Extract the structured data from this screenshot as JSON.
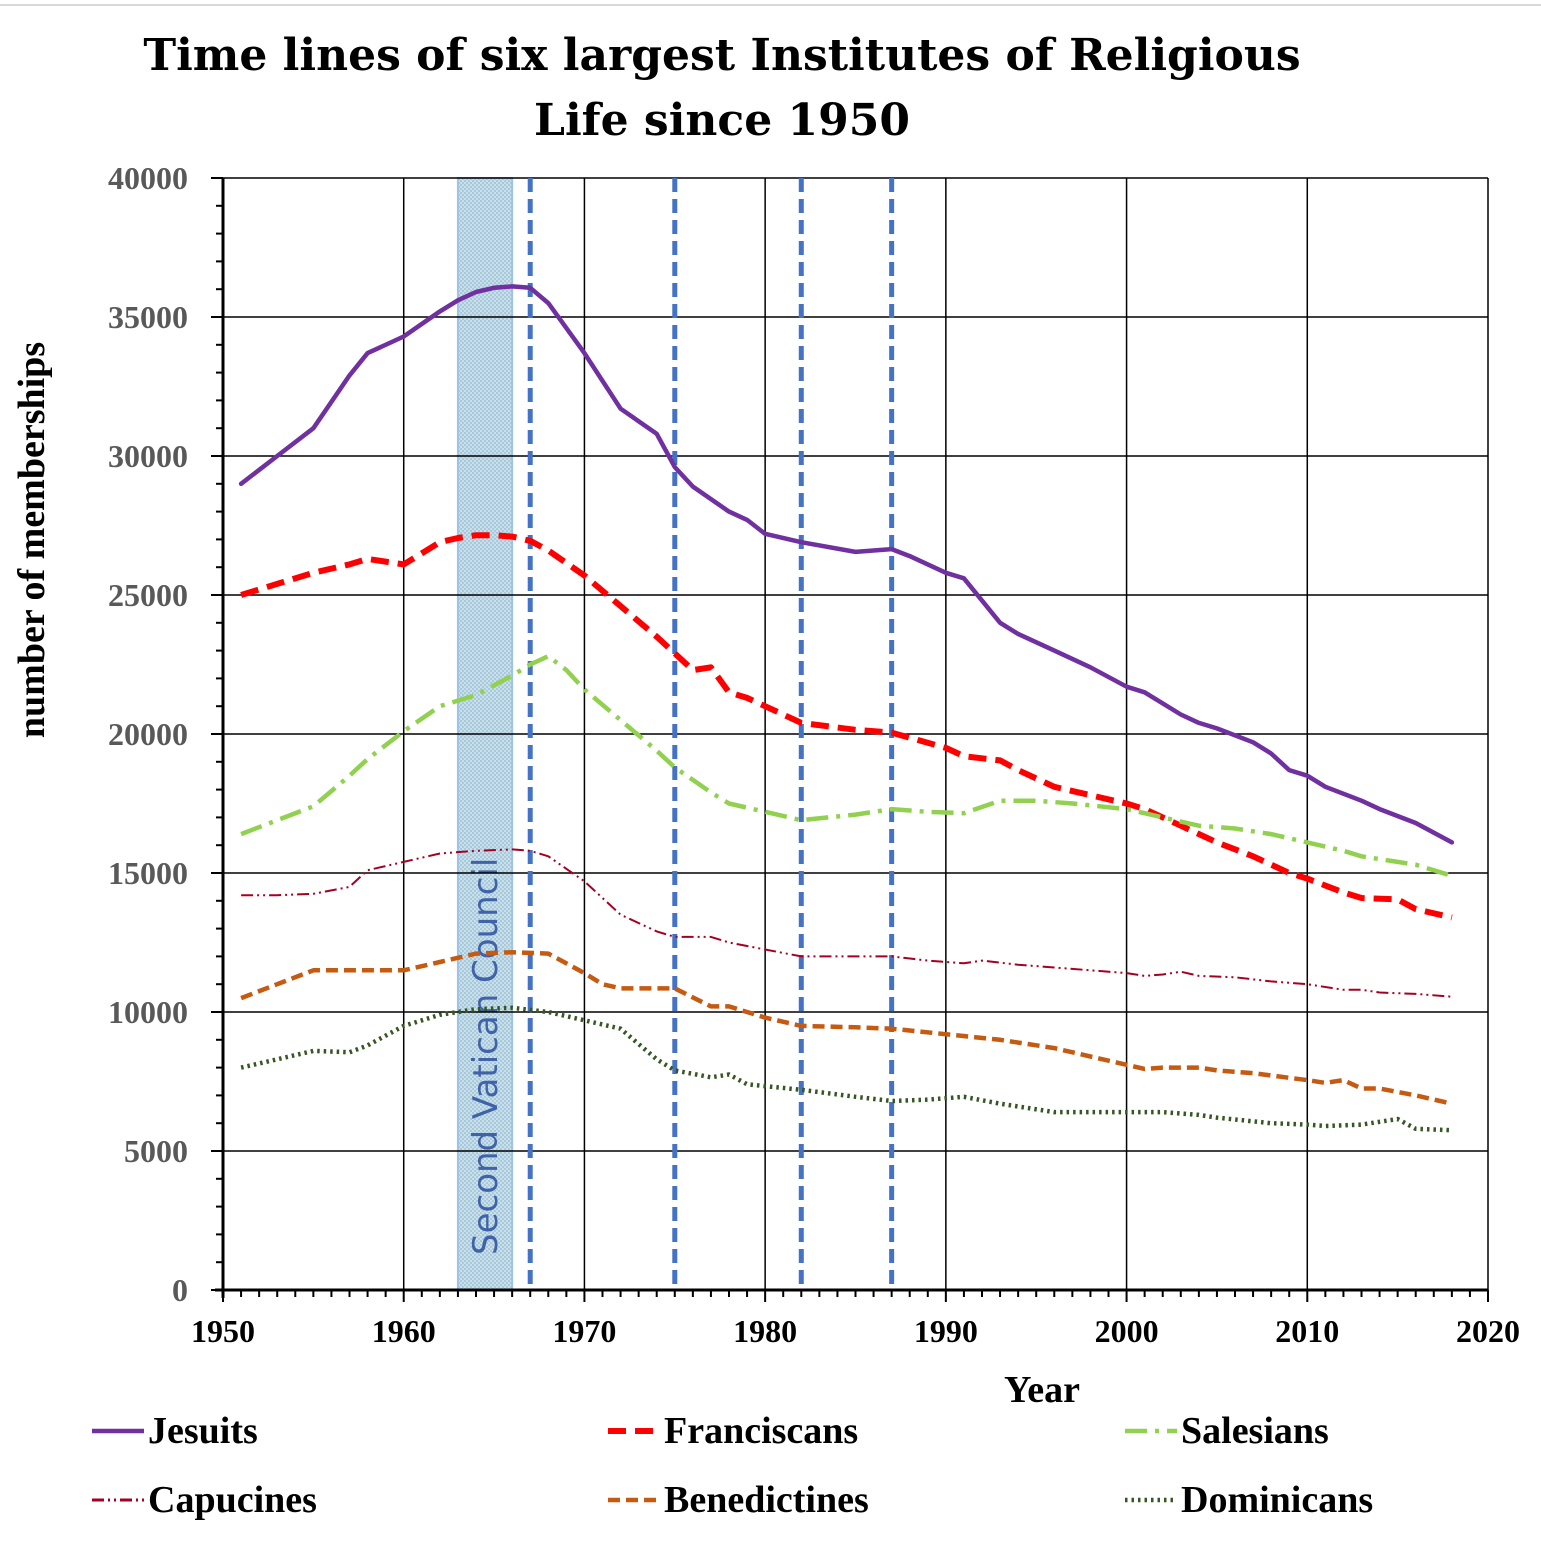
{
  "chart_data": {
    "type": "line",
    "title_lines": [
      "Time lines of  six largest Institutes of  Religious",
      "Life since 1950"
    ],
    "xlabel": "Year",
    "ylabel": "number of  memberships",
    "xlim": [
      1950,
      2020
    ],
    "ylim": [
      0,
      40000
    ],
    "x_ticks": [
      1950,
      1960,
      1970,
      1980,
      1990,
      2000,
      2010,
      2020
    ],
    "y_ticks": [
      0,
      5000,
      10000,
      15000,
      20000,
      25000,
      30000,
      35000,
      40000
    ],
    "grid": true,
    "legend_position": "bottom",
    "band": {
      "x_start": 1963,
      "x_end": 1966,
      "label": "Second Vatican Council",
      "fill": "#b9d7e6",
      "text_color": "#4062a8"
    },
    "markers": {
      "x_values": [
        1967,
        1975,
        1982,
        1987
      ],
      "color": "#4472c4"
    },
    "colors": {
      "axis": "#000000",
      "grid": "#000000",
      "tick_label": "#595959"
    },
    "series": [
      {
        "name": "Jesuits",
        "color": "#7030a0",
        "style": "solid",
        "points": [
          [
            1951,
            29000
          ],
          [
            1953,
            30000
          ],
          [
            1955,
            31000
          ],
          [
            1957,
            32900
          ],
          [
            1958,
            33700
          ],
          [
            1960,
            34300
          ],
          [
            1962,
            35200
          ],
          [
            1963,
            35600
          ],
          [
            1964,
            35900
          ],
          [
            1965,
            36050
          ],
          [
            1966,
            36100
          ],
          [
            1967,
            36050
          ],
          [
            1968,
            35500
          ],
          [
            1970,
            33700
          ],
          [
            1972,
            31700
          ],
          [
            1974,
            30800
          ],
          [
            1975,
            29600
          ],
          [
            1976,
            28900
          ],
          [
            1978,
            28000
          ],
          [
            1979,
            27700
          ],
          [
            1980,
            27200
          ],
          [
            1982,
            26900
          ],
          [
            1985,
            26550
          ],
          [
            1987,
            26650
          ],
          [
            1988,
            26400
          ],
          [
            1990,
            25800
          ],
          [
            1991,
            25600
          ],
          [
            1993,
            24000
          ],
          [
            1994,
            23600
          ],
          [
            1996,
            23000
          ],
          [
            1998,
            22400
          ],
          [
            2000,
            21700
          ],
          [
            2001,
            21500
          ],
          [
            2003,
            20700
          ],
          [
            2004,
            20400
          ],
          [
            2005,
            20200
          ],
          [
            2007,
            19700
          ],
          [
            2008,
            19300
          ],
          [
            2009,
            18700
          ],
          [
            2010,
            18500
          ],
          [
            2011,
            18100
          ],
          [
            2013,
            17600
          ],
          [
            2014,
            17300
          ],
          [
            2016,
            16800
          ],
          [
            2018,
            16100
          ]
        ]
      },
      {
        "name": "Franciscans",
        "color": "#ff0000",
        "style": "dash",
        "points": [
          [
            1951,
            25000
          ],
          [
            1953,
            25400
          ],
          [
            1955,
            25800
          ],
          [
            1957,
            26100
          ],
          [
            1958,
            26300
          ],
          [
            1960,
            26100
          ],
          [
            1961,
            26500
          ],
          [
            1962,
            26900
          ],
          [
            1963,
            27050
          ],
          [
            1964,
            27150
          ],
          [
            1965,
            27150
          ],
          [
            1966,
            27100
          ],
          [
            1967,
            26950
          ],
          [
            1968,
            26600
          ],
          [
            1970,
            25700
          ],
          [
            1972,
            24600
          ],
          [
            1974,
            23500
          ],
          [
            1975,
            22900
          ],
          [
            1976,
            22300
          ],
          [
            1977,
            22400
          ],
          [
            1978,
            21500
          ],
          [
            1979,
            21300
          ],
          [
            1980,
            21000
          ],
          [
            1982,
            20400
          ],
          [
            1985,
            20150
          ],
          [
            1987,
            20050
          ],
          [
            1990,
            19500
          ],
          [
            1991,
            19200
          ],
          [
            1993,
            19050
          ],
          [
            1994,
            18700
          ],
          [
            1996,
            18100
          ],
          [
            1998,
            17800
          ],
          [
            2000,
            17500
          ],
          [
            2001,
            17300
          ],
          [
            2003,
            16700
          ],
          [
            2005,
            16100
          ],
          [
            2007,
            15600
          ],
          [
            2009,
            15000
          ],
          [
            2010,
            14800
          ],
          [
            2012,
            14300
          ],
          [
            2013,
            14100
          ],
          [
            2015,
            14050
          ],
          [
            2016,
            13700
          ],
          [
            2018,
            13400
          ]
        ]
      },
      {
        "name": "Salesians",
        "color": "#92d050",
        "style": "dashdot",
        "points": [
          [
            1951,
            16400
          ],
          [
            1953,
            16900
          ],
          [
            1955,
            17400
          ],
          [
            1957,
            18500
          ],
          [
            1958,
            19100
          ],
          [
            1960,
            20100
          ],
          [
            1962,
            21000
          ],
          [
            1964,
            21400
          ],
          [
            1966,
            22100
          ],
          [
            1967,
            22500
          ],
          [
            1968,
            22800
          ],
          [
            1969,
            22300
          ],
          [
            1970,
            21600
          ],
          [
            1972,
            20500
          ],
          [
            1974,
            19400
          ],
          [
            1975,
            18800
          ],
          [
            1977,
            17900
          ],
          [
            1978,
            17500
          ],
          [
            1980,
            17200
          ],
          [
            1982,
            16900
          ],
          [
            1985,
            17100
          ],
          [
            1987,
            17300
          ],
          [
            1989,
            17200
          ],
          [
            1991,
            17150
          ],
          [
            1993,
            17600
          ],
          [
            1995,
            17600
          ],
          [
            1997,
            17500
          ],
          [
            2000,
            17300
          ],
          [
            2002,
            17000
          ],
          [
            2004,
            16700
          ],
          [
            2006,
            16600
          ],
          [
            2008,
            16400
          ],
          [
            2010,
            16100
          ],
          [
            2012,
            15800
          ],
          [
            2013,
            15600
          ],
          [
            2015,
            15400
          ],
          [
            2016,
            15300
          ],
          [
            2018,
            14900
          ]
        ]
      },
      {
        "name": "Capucines",
        "color": "#a50021",
        "style": "dashdotdot",
        "points": [
          [
            1951,
            14200
          ],
          [
            1953,
            14200
          ],
          [
            1955,
            14250
          ],
          [
            1957,
            14500
          ],
          [
            1958,
            15100
          ],
          [
            1960,
            15400
          ],
          [
            1962,
            15700
          ],
          [
            1964,
            15800
          ],
          [
            1966,
            15850
          ],
          [
            1967,
            15800
          ],
          [
            1968,
            15600
          ],
          [
            1970,
            14700
          ],
          [
            1972,
            13500
          ],
          [
            1974,
            12900
          ],
          [
            1975,
            12700
          ],
          [
            1977,
            12700
          ],
          [
            1978,
            12500
          ],
          [
            1980,
            12250
          ],
          [
            1982,
            12000
          ],
          [
            1985,
            12000
          ],
          [
            1987,
            12000
          ],
          [
            1989,
            11850
          ],
          [
            1991,
            11750
          ],
          [
            1992,
            11850
          ],
          [
            1994,
            11700
          ],
          [
            1996,
            11600
          ],
          [
            1998,
            11500
          ],
          [
            2000,
            11400
          ],
          [
            2001,
            11300
          ],
          [
            2002,
            11350
          ],
          [
            2003,
            11450
          ],
          [
            2004,
            11300
          ],
          [
            2006,
            11250
          ],
          [
            2008,
            11100
          ],
          [
            2010,
            11000
          ],
          [
            2012,
            10800
          ],
          [
            2013,
            10800
          ],
          [
            2014,
            10700
          ],
          [
            2016,
            10650
          ],
          [
            2018,
            10550
          ]
        ]
      },
      {
        "name": "Benedictines",
        "color": "#c55a11",
        "style": "shortdash",
        "points": [
          [
            1951,
            10500
          ],
          [
            1953,
            11000
          ],
          [
            1955,
            11500
          ],
          [
            1957,
            11500
          ],
          [
            1958,
            11500
          ],
          [
            1960,
            11500
          ],
          [
            1962,
            11800
          ],
          [
            1964,
            12100
          ],
          [
            1966,
            12150
          ],
          [
            1968,
            12100
          ],
          [
            1970,
            11400
          ],
          [
            1971,
            11000
          ],
          [
            1972,
            10850
          ],
          [
            1975,
            10850
          ],
          [
            1977,
            10200
          ],
          [
            1978,
            10200
          ],
          [
            1980,
            9800
          ],
          [
            1982,
            9500
          ],
          [
            1985,
            9450
          ],
          [
            1987,
            9400
          ],
          [
            1990,
            9200
          ],
          [
            1993,
            9000
          ],
          [
            1996,
            8700
          ],
          [
            1998,
            8400
          ],
          [
            2000,
            8100
          ],
          [
            2001,
            7950
          ],
          [
            2002,
            8000
          ],
          [
            2004,
            8000
          ],
          [
            2005,
            7900
          ],
          [
            2007,
            7800
          ],
          [
            2010,
            7550
          ],
          [
            2011,
            7450
          ],
          [
            2012,
            7550
          ],
          [
            2013,
            7250
          ],
          [
            2014,
            7250
          ],
          [
            2016,
            7000
          ],
          [
            2018,
            6700
          ]
        ]
      },
      {
        "name": "Dominicans",
        "color": "#375623",
        "style": "dot",
        "points": [
          [
            1951,
            8000
          ],
          [
            1953,
            8300
          ],
          [
            1955,
            8600
          ],
          [
            1957,
            8550
          ],
          [
            1958,
            8800
          ],
          [
            1960,
            9500
          ],
          [
            1962,
            9900
          ],
          [
            1964,
            10100
          ],
          [
            1966,
            10150
          ],
          [
            1968,
            10000
          ],
          [
            1970,
            9700
          ],
          [
            1972,
            9400
          ],
          [
            1974,
            8300
          ],
          [
            1975,
            7900
          ],
          [
            1977,
            7650
          ],
          [
            1978,
            7750
          ],
          [
            1979,
            7400
          ],
          [
            1982,
            7200
          ],
          [
            1985,
            6950
          ],
          [
            1987,
            6800
          ],
          [
            1989,
            6850
          ],
          [
            1991,
            6950
          ],
          [
            1993,
            6700
          ],
          [
            1996,
            6400
          ],
          [
            1998,
            6400
          ],
          [
            2000,
            6400
          ],
          [
            2002,
            6400
          ],
          [
            2004,
            6300
          ],
          [
            2005,
            6200
          ],
          [
            2008,
            6000
          ],
          [
            2010,
            5950
          ],
          [
            2011,
            5900
          ],
          [
            2013,
            5950
          ],
          [
            2015,
            6150
          ],
          [
            2016,
            5800
          ],
          [
            2018,
            5750
          ]
        ]
      }
    ]
  }
}
